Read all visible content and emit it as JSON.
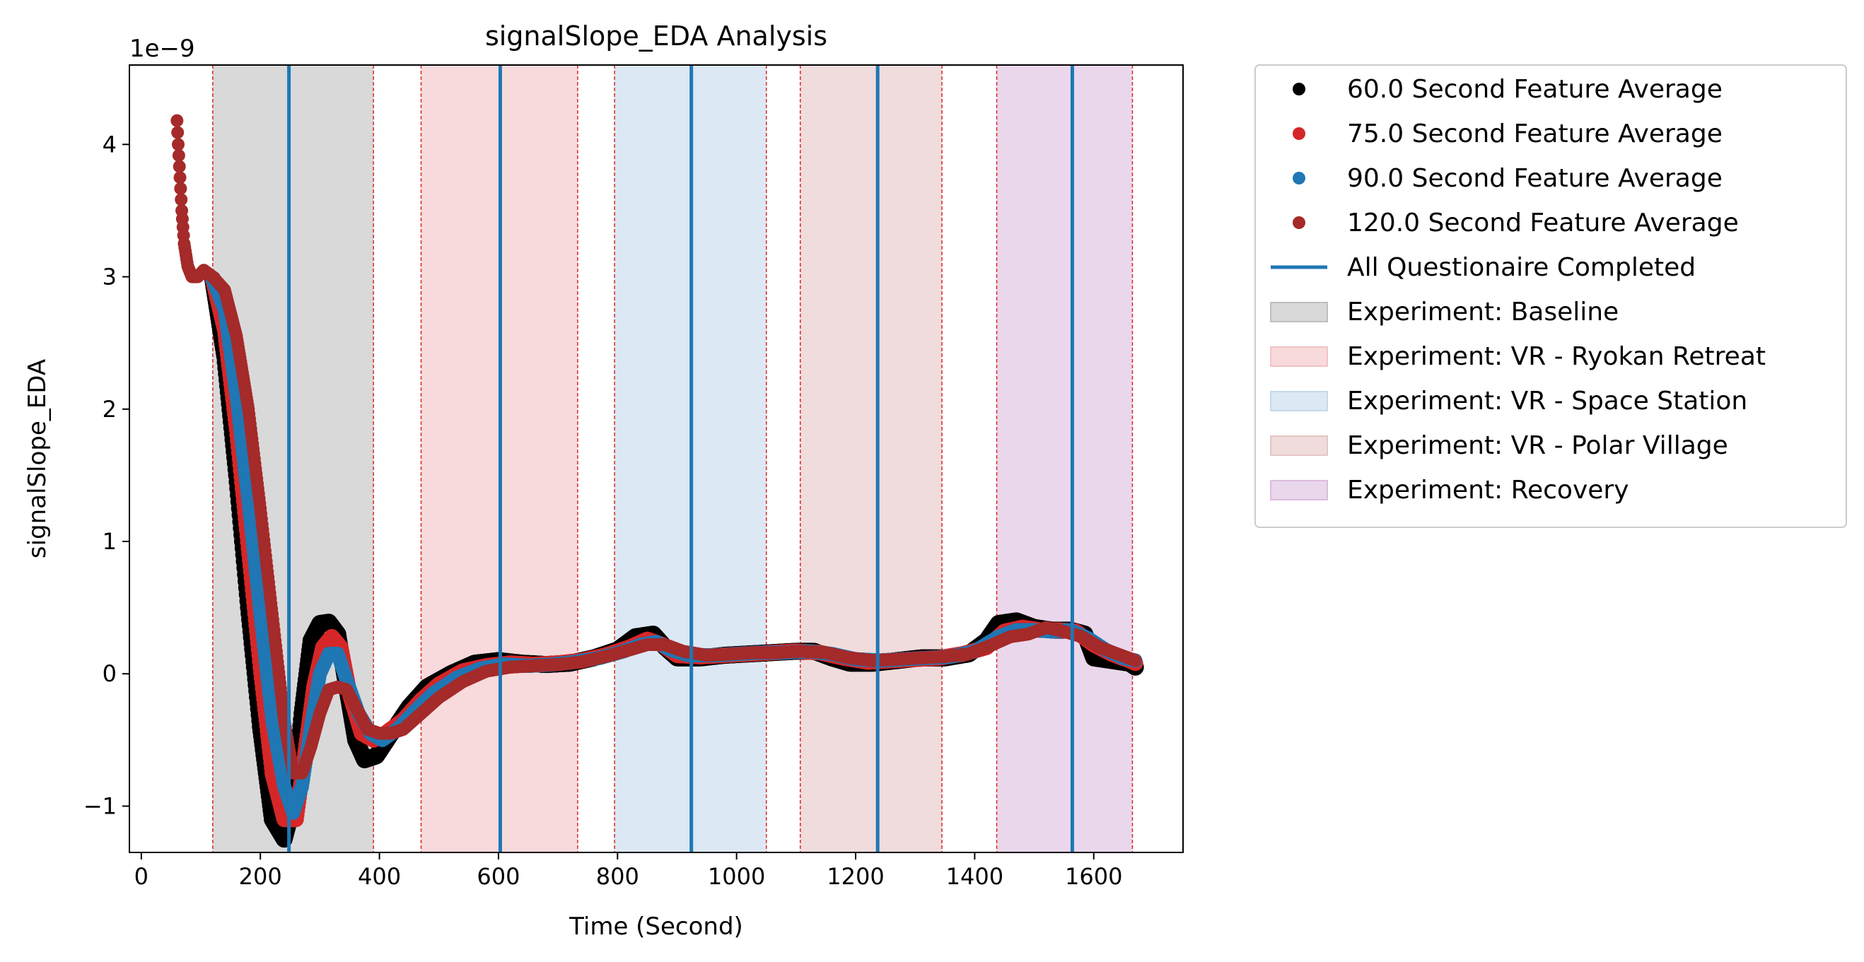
{
  "chart_data": {
    "type": "scatter",
    "title": "signalSlope_EDA Analysis",
    "xlabel": "Time (Second)",
    "ylabel": "signalSlope_EDA",
    "y_scale_label": "1e−9",
    "xlim": [
      -20,
      1750
    ],
    "ylim": [
      -1.35,
      4.6
    ],
    "x_ticks": [
      0,
      200,
      400,
      600,
      800,
      1000,
      1200,
      1400,
      1600
    ],
    "y_ticks": [
      -1,
      0,
      1,
      2,
      3,
      4
    ],
    "y_tick_labels": [
      "−1",
      "0",
      "1",
      "2",
      "3",
      "4"
    ],
    "grid": false,
    "legend_position": "outside-right",
    "series": [
      {
        "name": "60.0 Second Feature Average",
        "color": "#000000",
        "points": [
          [
            120,
            2.98
          ],
          [
            140,
            2.4
          ],
          [
            160,
            1.5
          ],
          [
            180,
            0.5
          ],
          [
            200,
            -0.4
          ],
          [
            220,
            -1.1
          ],
          [
            240,
            -1.25
          ],
          [
            255,
            -1.0
          ],
          [
            270,
            -0.3
          ],
          [
            285,
            0.25
          ],
          [
            300,
            0.38
          ],
          [
            315,
            0.39
          ],
          [
            330,
            0.3
          ],
          [
            345,
            -0.1
          ],
          [
            360,
            -0.5
          ],
          [
            375,
            -0.65
          ],
          [
            395,
            -0.62
          ],
          [
            420,
            -0.45
          ],
          [
            450,
            -0.25
          ],
          [
            480,
            -0.1
          ],
          [
            520,
            0.0
          ],
          [
            560,
            0.08
          ],
          [
            600,
            0.1
          ],
          [
            640,
            0.08
          ],
          [
            680,
            0.07
          ],
          [
            720,
            0.08
          ],
          [
            760,
            0.12
          ],
          [
            800,
            0.18
          ],
          [
            830,
            0.28
          ],
          [
            860,
            0.3
          ],
          [
            880,
            0.2
          ],
          [
            900,
            0.12
          ],
          [
            940,
            0.12
          ],
          [
            980,
            0.14
          ],
          [
            1020,
            0.15
          ],
          [
            1060,
            0.16
          ],
          [
            1100,
            0.17
          ],
          [
            1130,
            0.17
          ],
          [
            1160,
            0.12
          ],
          [
            1190,
            0.08
          ],
          [
            1230,
            0.08
          ],
          [
            1270,
            0.1
          ],
          [
            1310,
            0.12
          ],
          [
            1350,
            0.12
          ],
          [
            1390,
            0.15
          ],
          [
            1420,
            0.25
          ],
          [
            1440,
            0.38
          ],
          [
            1470,
            0.4
          ],
          [
            1500,
            0.35
          ],
          [
            1530,
            0.33
          ],
          [
            1560,
            0.33
          ],
          [
            1585,
            0.3
          ],
          [
            1600,
            0.12
          ],
          [
            1630,
            0.1
          ],
          [
            1660,
            0.08
          ],
          [
            1670,
            0.05
          ]
        ]
      },
      {
        "name": "75.0 Second Feature Average",
        "color": "#d62728",
        "points": [
          [
            120,
            2.98
          ],
          [
            140,
            2.6
          ],
          [
            160,
            1.85
          ],
          [
            180,
            0.95
          ],
          [
            200,
            0.05
          ],
          [
            220,
            -0.75
          ],
          [
            240,
            -1.1
          ],
          [
            260,
            -1.1
          ],
          [
            275,
            -0.6
          ],
          [
            290,
            -0.1
          ],
          [
            305,
            0.2
          ],
          [
            320,
            0.28
          ],
          [
            335,
            0.2
          ],
          [
            350,
            -0.15
          ],
          [
            370,
            -0.45
          ],
          [
            390,
            -0.5
          ],
          [
            410,
            -0.45
          ],
          [
            440,
            -0.35
          ],
          [
            470,
            -0.2
          ],
          [
            500,
            -0.08
          ],
          [
            540,
            0.02
          ],
          [
            580,
            0.06
          ],
          [
            620,
            0.08
          ],
          [
            660,
            0.07
          ],
          [
            700,
            0.08
          ],
          [
            740,
            0.1
          ],
          [
            780,
            0.14
          ],
          [
            820,
            0.2
          ],
          [
            850,
            0.26
          ],
          [
            875,
            0.22
          ],
          [
            900,
            0.14
          ],
          [
            940,
            0.13
          ],
          [
            980,
            0.14
          ],
          [
            1020,
            0.15
          ],
          [
            1060,
            0.16
          ],
          [
            1100,
            0.17
          ],
          [
            1140,
            0.16
          ],
          [
            1180,
            0.12
          ],
          [
            1220,
            0.09
          ],
          [
            1260,
            0.1
          ],
          [
            1300,
            0.11
          ],
          [
            1340,
            0.12
          ],
          [
            1380,
            0.15
          ],
          [
            1420,
            0.2
          ],
          [
            1450,
            0.32
          ],
          [
            1480,
            0.35
          ],
          [
            1510,
            0.33
          ],
          [
            1540,
            0.33
          ],
          [
            1570,
            0.32
          ],
          [
            1600,
            0.22
          ],
          [
            1630,
            0.15
          ],
          [
            1660,
            0.1
          ],
          [
            1670,
            0.08
          ]
        ]
      },
      {
        "name": "90.0 Second Feature Average",
        "color": "#1f77b4",
        "points": [
          [
            120,
            2.98
          ],
          [
            140,
            2.75
          ],
          [
            160,
            2.1
          ],
          [
            180,
            1.3
          ],
          [
            200,
            0.45
          ],
          [
            220,
            -0.35
          ],
          [
            240,
            -0.85
          ],
          [
            255,
            -1.05
          ],
          [
            270,
            -0.85
          ],
          [
            285,
            -0.4
          ],
          [
            300,
            0.0
          ],
          [
            315,
            0.15
          ],
          [
            330,
            0.15
          ],
          [
            345,
            -0.05
          ],
          [
            365,
            -0.3
          ],
          [
            385,
            -0.45
          ],
          [
            405,
            -0.5
          ],
          [
            430,
            -0.42
          ],
          [
            460,
            -0.28
          ],
          [
            490,
            -0.15
          ],
          [
            530,
            -0.03
          ],
          [
            570,
            0.04
          ],
          [
            610,
            0.07
          ],
          [
            650,
            0.06
          ],
          [
            690,
            0.07
          ],
          [
            730,
            0.09
          ],
          [
            770,
            0.12
          ],
          [
            810,
            0.17
          ],
          [
            840,
            0.22
          ],
          [
            865,
            0.24
          ],
          [
            890,
            0.18
          ],
          [
            920,
            0.14
          ],
          [
            960,
            0.14
          ],
          [
            1000,
            0.15
          ],
          [
            1040,
            0.16
          ],
          [
            1080,
            0.16
          ],
          [
            1120,
            0.17
          ],
          [
            1160,
            0.15
          ],
          [
            1200,
            0.11
          ],
          [
            1240,
            0.1
          ],
          [
            1280,
            0.11
          ],
          [
            1320,
            0.12
          ],
          [
            1360,
            0.13
          ],
          [
            1400,
            0.17
          ],
          [
            1440,
            0.28
          ],
          [
            1470,
            0.33
          ],
          [
            1500,
            0.33
          ],
          [
            1530,
            0.32
          ],
          [
            1560,
            0.33
          ],
          [
            1590,
            0.27
          ],
          [
            1620,
            0.18
          ],
          [
            1650,
            0.12
          ],
          [
            1670,
            0.1
          ]
        ]
      },
      {
        "name": "120.0 Second Feature Average",
        "color": "#a52a2a",
        "points": [
          [
            60,
            4.18
          ],
          [
            62,
            4.0
          ],
          [
            65,
            3.75
          ],
          [
            68,
            3.5
          ],
          [
            72,
            3.25
          ],
          [
            78,
            3.08
          ],
          [
            85,
            3.0
          ],
          [
            95,
            3.0
          ],
          [
            105,
            3.05
          ],
          [
            120,
            3.0
          ],
          [
            140,
            2.9
          ],
          [
            160,
            2.55
          ],
          [
            180,
            2.0
          ],
          [
            200,
            1.25
          ],
          [
            220,
            0.45
          ],
          [
            240,
            -0.35
          ],
          [
            255,
            -0.75
          ],
          [
            270,
            -0.75
          ],
          [
            285,
            -0.55
          ],
          [
            300,
            -0.3
          ],
          [
            315,
            -0.12
          ],
          [
            330,
            -0.1
          ],
          [
            345,
            -0.12
          ],
          [
            360,
            -0.25
          ],
          [
            380,
            -0.42
          ],
          [
            400,
            -0.45
          ],
          [
            420,
            -0.45
          ],
          [
            440,
            -0.42
          ],
          [
            470,
            -0.3
          ],
          [
            500,
            -0.18
          ],
          [
            540,
            -0.06
          ],
          [
            580,
            0.02
          ],
          [
            620,
            0.05
          ],
          [
            660,
            0.06
          ],
          [
            700,
            0.07
          ],
          [
            740,
            0.09
          ],
          [
            780,
            0.13
          ],
          [
            820,
            0.18
          ],
          [
            850,
            0.22
          ],
          [
            880,
            0.22
          ],
          [
            910,
            0.17
          ],
          [
            950,
            0.14
          ],
          [
            990,
            0.15
          ],
          [
            1030,
            0.16
          ],
          [
            1070,
            0.16
          ],
          [
            1110,
            0.17
          ],
          [
            1150,
            0.16
          ],
          [
            1190,
            0.12
          ],
          [
            1230,
            0.1
          ],
          [
            1270,
            0.11
          ],
          [
            1310,
            0.12
          ],
          [
            1350,
            0.13
          ],
          [
            1390,
            0.15
          ],
          [
            1430,
            0.22
          ],
          [
            1460,
            0.28
          ],
          [
            1490,
            0.3
          ],
          [
            1520,
            0.35
          ],
          [
            1550,
            0.32
          ],
          [
            1580,
            0.28
          ],
          [
            1610,
            0.2
          ],
          [
            1640,
            0.15
          ],
          [
            1670,
            0.1
          ]
        ]
      }
    ],
    "questionnaire_lines": {
      "name": "All Questionaire Completed",
      "color": "#1f77b4",
      "x": [
        248,
        603,
        924,
        1237,
        1564
      ]
    },
    "spans": [
      {
        "name": "Experiment: Baseline",
        "start": 120,
        "end": 390,
        "color": "#bfbfbf"
      },
      {
        "name": "Experiment: VR - Ryokan Retreat",
        "start": 470,
        "end": 733,
        "color": "#f4c2c4"
      },
      {
        "name": "Experiment: VR - Space Station",
        "start": 795,
        "end": 1050,
        "color": "#c5d9eb"
      },
      {
        "name": "Experiment: VR - Polar Village",
        "start": 1107,
        "end": 1345,
        "color": "#e6c5c5"
      },
      {
        "name": "Experiment: Recovery",
        "start": 1437,
        "end": 1665,
        "color": "#dcbcdf"
      }
    ],
    "span_boundaries_color": "#d62728"
  }
}
